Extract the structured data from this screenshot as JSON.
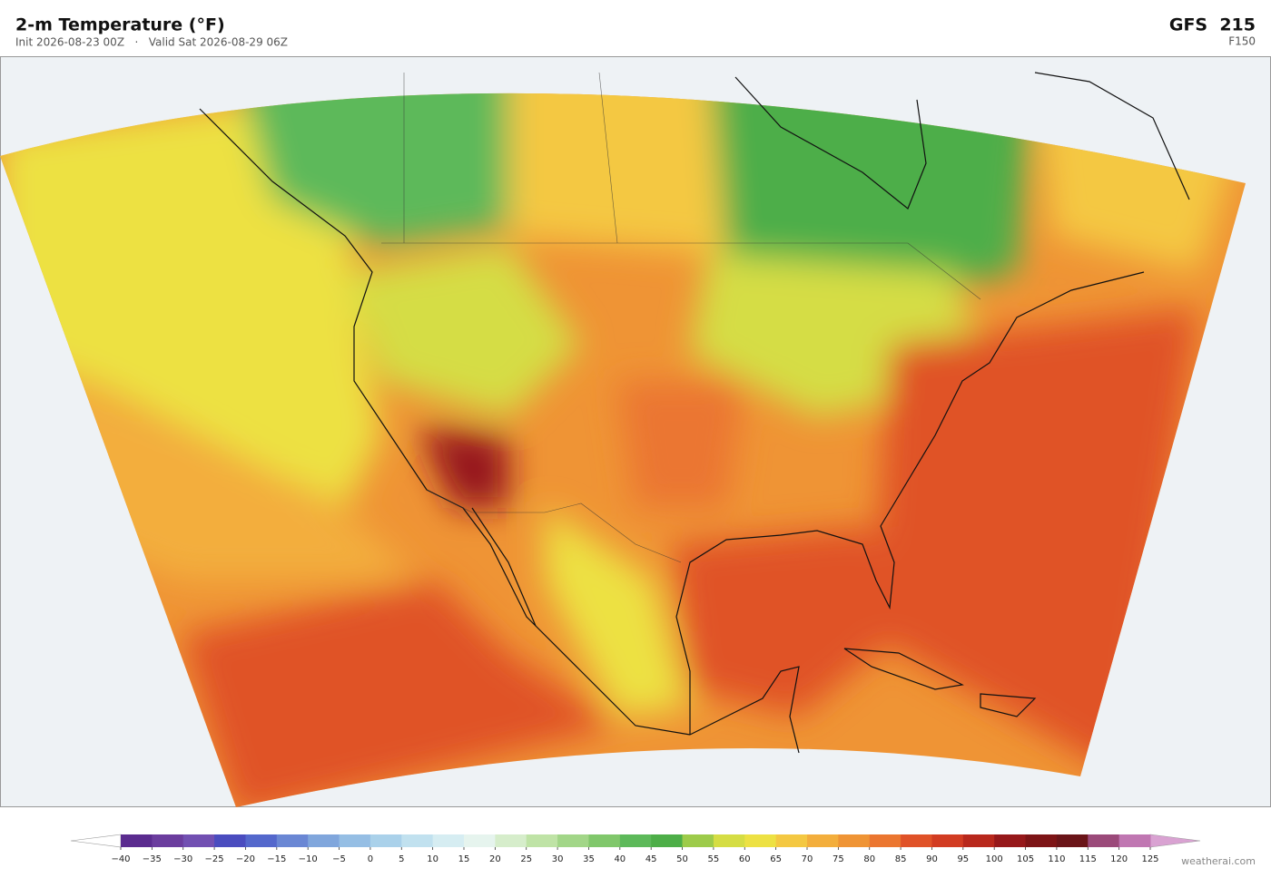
{
  "header": {
    "title": "2-m Temperature  (°F)",
    "subtitle": "Init 2026-08-23 00Z   ·   Valid Sat 2026-08-29 06Z",
    "model": "GFS  215",
    "forecast_hour": "F150"
  },
  "colorbar": {
    "ticks": [
      "−40",
      "−35",
      "−30",
      "−25",
      "−20",
      "−15",
      "−10",
      "−5",
      "0",
      "5",
      "10",
      "15",
      "20",
      "25",
      "30",
      "35",
      "40",
      "45",
      "50",
      "55",
      "60",
      "65",
      "70",
      "75",
      "80",
      "85",
      "90",
      "95",
      "100",
      "105",
      "110",
      "115",
      "120",
      "125"
    ],
    "colors": [
      "#5b2c8f",
      "#6b3d9e",
      "#7250b2",
      "#4a4cbf",
      "#5468cc",
      "#6a87d4",
      "#80a6dc",
      "#95bee4",
      "#aad1ea",
      "#c1e1ef",
      "#d6edf2",
      "#e6f4ee",
      "#d6edcb",
      "#bfe3a6",
      "#a2d688",
      "#80c76b",
      "#5db95a",
      "#4dae48",
      "#9dcb4a",
      "#d5dd44",
      "#ede143",
      "#f4c842",
      "#f3ae3c",
      "#ef9435",
      "#eb7630",
      "#e05228",
      "#d23c22",
      "#b8281c",
      "#96181a",
      "#7d1416",
      "#6a1418",
      "#9b4a7a",
      "#c077b2"
    ],
    "under_color": "#ffffff",
    "over_color": "#d9a2d2"
  },
  "credit": "weatherai.com"
}
